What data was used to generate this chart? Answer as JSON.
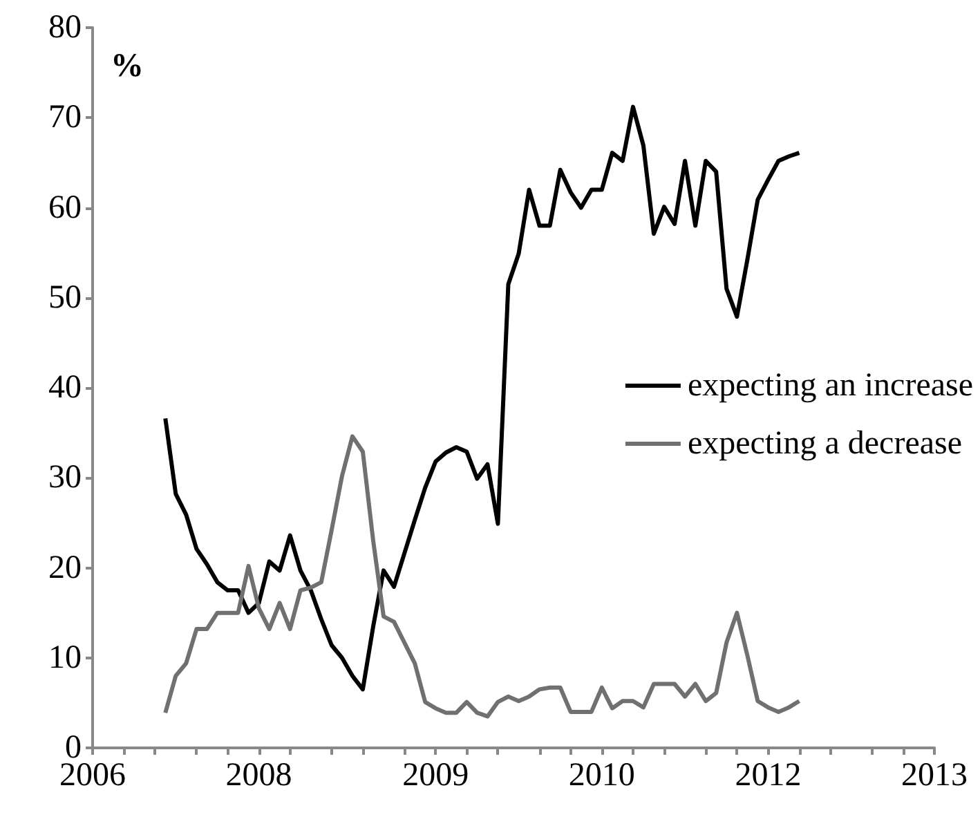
{
  "chart_data": {
    "type": "line",
    "ylabel": "%",
    "categories": [
      "2006",
      null,
      null,
      null,
      null,
      null,
      null,
      null,
      null,
      null,
      null,
      null,
      null,
      null,
      null,
      null,
      "2008",
      null,
      null,
      null,
      null,
      null,
      null,
      null,
      null,
      null,
      null,
      null,
      null,
      null,
      null,
      null,
      null,
      "2009",
      null,
      null,
      null,
      null,
      null,
      null,
      null,
      null,
      null,
      null,
      null,
      null,
      null,
      null,
      null,
      "2010",
      null,
      null,
      null,
      null,
      null,
      null,
      null,
      null,
      null,
      null,
      null,
      null,
      null,
      null,
      null,
      "2012",
      null,
      null,
      null,
      null,
      null,
      null,
      null,
      null,
      null,
      null,
      null,
      null,
      null,
      null,
      null,
      "2013"
    ],
    "series": [
      {
        "name": "expecting an increase",
        "color": "#000000",
        "values": [
          null,
          null,
          null,
          null,
          null,
          null,
          null,
          36.6,
          28.2,
          25.9,
          22.1,
          20.4,
          18.4,
          17.5,
          17.5,
          15.0,
          16.1,
          20.7,
          19.7,
          23.6,
          19.7,
          17.5,
          14.3,
          11.4,
          10.0,
          8.0,
          6.5,
          13.5,
          19.7,
          17.9,
          21.6,
          25.3,
          28.9,
          31.8,
          32.8,
          33.4,
          32.9,
          29.9,
          31.5,
          24.9,
          51.5,
          54.9,
          62.0,
          58.0,
          58.0,
          64.2,
          61.7,
          60.0,
          62.0,
          62.0,
          66.1,
          65.2,
          71.2,
          66.9,
          57.1,
          60.1,
          58.2,
          65.2,
          58.0,
          65.2,
          64.0,
          51.0,
          47.9,
          54.2,
          60.9,
          63.1,
          65.2,
          65.7,
          66.1,
          null,
          null,
          null,
          null,
          null,
          null,
          null,
          null,
          null,
          null,
          null,
          null,
          null
        ]
      },
      {
        "name": "expecting a decrease",
        "color": "#707070",
        "values": [
          null,
          null,
          null,
          null,
          null,
          null,
          null,
          3.9,
          8.0,
          9.4,
          13.2,
          13.2,
          15.0,
          15.0,
          15.0,
          20.2,
          15.5,
          13.2,
          16.1,
          13.2,
          17.5,
          17.8,
          18.4,
          24.2,
          30.2,
          34.6,
          32.9,
          23.0,
          14.6,
          14.0,
          11.7,
          9.4,
          5.1,
          4.4,
          3.9,
          3.9,
          5.1,
          3.9,
          3.5,
          5.1,
          5.7,
          5.2,
          5.7,
          6.5,
          6.7,
          6.7,
          4.0,
          4.0,
          4.0,
          6.7,
          4.4,
          5.2,
          5.2,
          4.5,
          7.1,
          7.1,
          7.1,
          5.7,
          7.1,
          5.2,
          6.1,
          11.7,
          15.0,
          10.3,
          5.2,
          4.5,
          4.0,
          4.5,
          5.2,
          null,
          null,
          null,
          null,
          null,
          null,
          null,
          null,
          null,
          null,
          null,
          null,
          null
        ]
      }
    ],
    "ylim": [
      0,
      80
    ],
    "yticks": [
      0,
      10,
      20,
      30,
      40,
      50,
      60,
      70,
      80
    ],
    "grid": false,
    "legend": "right",
    "marker": "none",
    "line_style": "solid"
  }
}
